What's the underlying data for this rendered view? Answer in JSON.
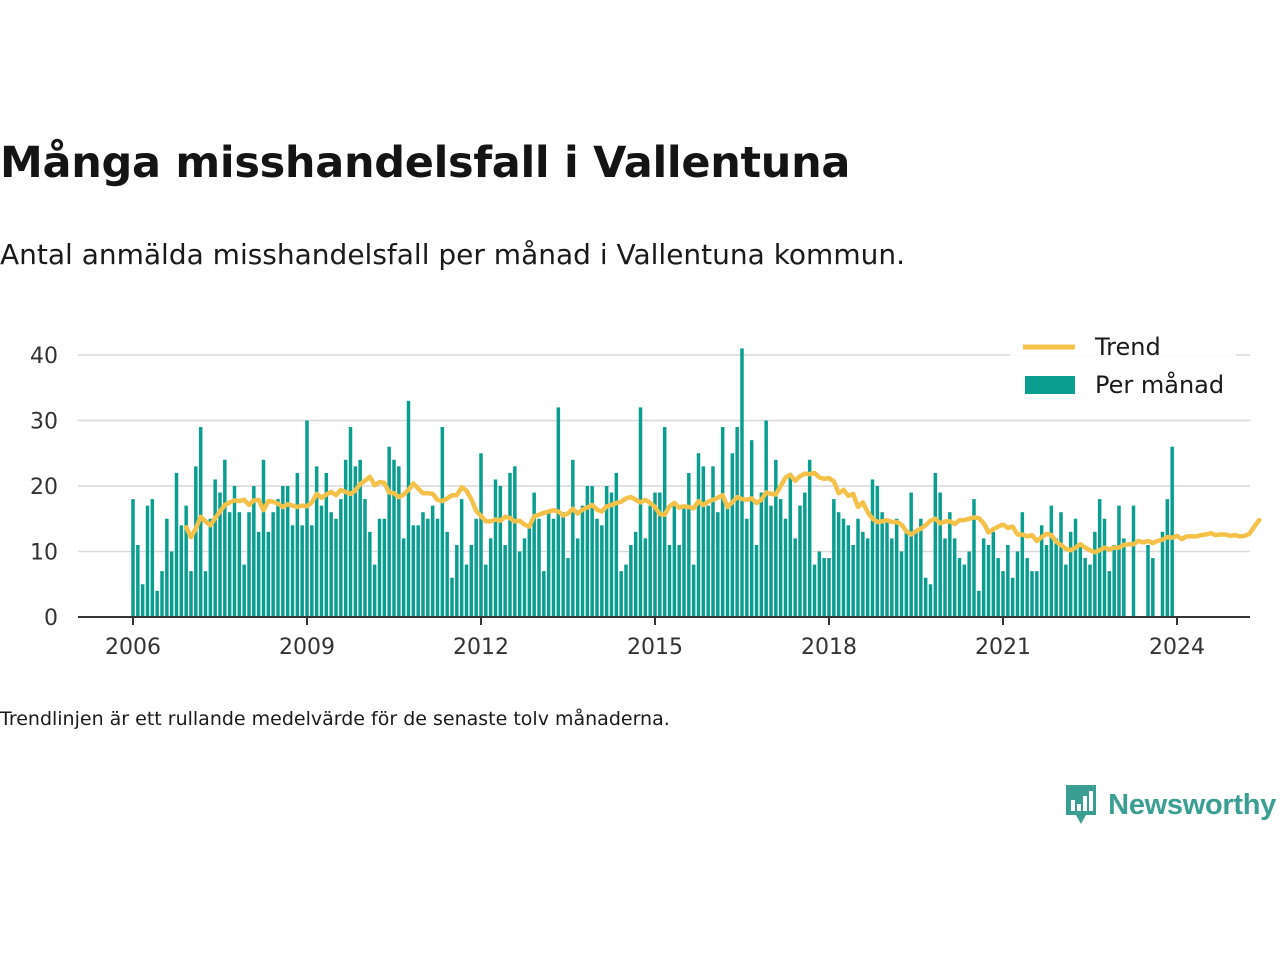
{
  "title": "Många misshandelsfall i Vallentuna",
  "subtitle": "Antal anmälda misshandelsfall per månad i Vallentuna kommun.",
  "footnote": "Trendlinjen är ett rullande medelvärde för de senaste tolv månaderna.",
  "logo": {
    "text": "Newsworthy",
    "icon": "newsworthy-bar-chart-icon"
  },
  "colors": {
    "bars": "#0a9e91",
    "trend": "#f5c249",
    "grid": "#d9d9d9",
    "axis": "#333333",
    "logo": "#3a9e92"
  },
  "chart_data": {
    "type": "bar",
    "title": "Många misshandelsfall i Vallentuna",
    "x_start": "2006-01",
    "x_ticks": [
      "2006",
      "2009",
      "2012",
      "2015",
      "2018",
      "2021",
      "2024"
    ],
    "y_ticks": [
      0,
      10,
      20,
      30,
      40
    ],
    "ylim": [
      0,
      42
    ],
    "grid": true,
    "legend_position": "top-right",
    "series": [
      {
        "name": "Trend",
        "type": "line",
        "start": "2006-12",
        "values": [
          13.7,
          12.2,
          13.5,
          15.3,
          14.6,
          14,
          15.1,
          16.1,
          17.1,
          17.5,
          17.8,
          17.7,
          17.9,
          17.1,
          17.8,
          17.9,
          16.3,
          17.7,
          17.6,
          17.3,
          16.8,
          17.2,
          17,
          16.8,
          17,
          16.9,
          17.5,
          18.8,
          18.2,
          18.7,
          19.1,
          18.6,
          19.4,
          19.1,
          18.8,
          19.3,
          20.3,
          20.8,
          21.4,
          20.1,
          20.6,
          20.5,
          19,
          18.9,
          18.3,
          18.7,
          19.4,
          20.4,
          19.6,
          18.9,
          18.9,
          18.8,
          17.9,
          17.7,
          18.1,
          18.6,
          18.6,
          19.8,
          19.3,
          18,
          16.2,
          15.4,
          14.6,
          14.6,
          14.9,
          14.7,
          15.3,
          15.1,
          14.6,
          14.7,
          14.1,
          13.8,
          15.4,
          15.6,
          15.9,
          16.1,
          16.3,
          16.1,
          15.5,
          15.8,
          16.5,
          15.8,
          16.4,
          16.7,
          17.1,
          16.4,
          16.1,
          16.9,
          17.1,
          17.4,
          17.6,
          18.1,
          18.3,
          17.9,
          17.5,
          17.9,
          17.4,
          16.8,
          15.7,
          15.6,
          16.9,
          17.4,
          16.7,
          16.9,
          16.8,
          16.6,
          17.7,
          17.1,
          17.6,
          17.9,
          18.2,
          18.6,
          16.8,
          17.5,
          18.3,
          18,
          17.9,
          18.1,
          17.4,
          17.9,
          19,
          18.8,
          18.7,
          20,
          21.3,
          21.7,
          20.8,
          21.5,
          21.9,
          21.8,
          22,
          21.3,
          21.1,
          21.2,
          20.7,
          18.9,
          19.4,
          18.5,
          18.8,
          16.8,
          17.5,
          16,
          15,
          14.5,
          14.6,
          14.8,
          14.5,
          14.5,
          14.1,
          13.1,
          12.6,
          13.1,
          13.5,
          14,
          14.7,
          15,
          14.3,
          14.6,
          14.6,
          14.2,
          14.8,
          14.8,
          15,
          15.2,
          15.1,
          14.3,
          12.9,
          13.4,
          13.8,
          14.1,
          13.6,
          13.8,
          12.6,
          12.6,
          12.3,
          12.5,
          11.6,
          12.2,
          12.7,
          12.5,
          11.5,
          11,
          10.4,
          10.2,
          10.6,
          11.1,
          10.6,
          10.2,
          9.9,
          10.2,
          10.6,
          10.3,
          10.6,
          10.6,
          11,
          11.1,
          11.1,
          11.6,
          11.4,
          11.6,
          11.3,
          11.6,
          11.8,
          12.2,
          12.1,
          12.4,
          11.9,
          12.3,
          12.3,
          12.3,
          12.5,
          12.6,
          12.8,
          12.5,
          12.6,
          12.6,
          12.4,
          12.5,
          12.3,
          12.4,
          12.7,
          13.8,
          14.8
        ]
      },
      {
        "name": "Per månad",
        "type": "bar",
        "start": "2006-01",
        "values": [
          18,
          11,
          5,
          17,
          18,
          4,
          7,
          15,
          10,
          22,
          14,
          17,
          7,
          23,
          29,
          7,
          15,
          21,
          19,
          24,
          16,
          20,
          16,
          8,
          16,
          20,
          13,
          24,
          13,
          16,
          18,
          20,
          20,
          14,
          22,
          14,
          30,
          14,
          23,
          17,
          22,
          16,
          15,
          18,
          24,
          29,
          23,
          24,
          18,
          13,
          8,
          15,
          15,
          26,
          24,
          23,
          12,
          33,
          14,
          14,
          16,
          15,
          17,
          15,
          29,
          13,
          6,
          11,
          18,
          8,
          11,
          15,
          25,
          8,
          12,
          21,
          20,
          11,
          22,
          23,
          10,
          12,
          14,
          19,
          15,
          7,
          16,
          15,
          32,
          16,
          9,
          24,
          12,
          17,
          20,
          20,
          15,
          14,
          20,
          19,
          22,
          7,
          8,
          11,
          13,
          32,
          12,
          17,
          19,
          19,
          29,
          11,
          17,
          11,
          17,
          22,
          8,
          25,
          23,
          17,
          23,
          16,
          29,
          17,
          25,
          29,
          41,
          15,
          27,
          11,
          19,
          30,
          17,
          24,
          18,
          15,
          22,
          12,
          17,
          19,
          24,
          8,
          10,
          9,
          9,
          18,
          16,
          15,
          14,
          11,
          15,
          13,
          12,
          21,
          20,
          16,
          15,
          12,
          15,
          10,
          13,
          19,
          13,
          15,
          6,
          5,
          22,
          19,
          12,
          16,
          12,
          9,
          8,
          10,
          18,
          4,
          12,
          11,
          13,
          9,
          7,
          11,
          6,
          10,
          16,
          9,
          7,
          7,
          14,
          11,
          17,
          12,
          16,
          8,
          13,
          15,
          11,
          9,
          8,
          13,
          18,
          15,
          7,
          11,
          17,
          12,
          0,
          17,
          0,
          0,
          11,
          9,
          0,
          13,
          18,
          26
        ]
      }
    ]
  }
}
